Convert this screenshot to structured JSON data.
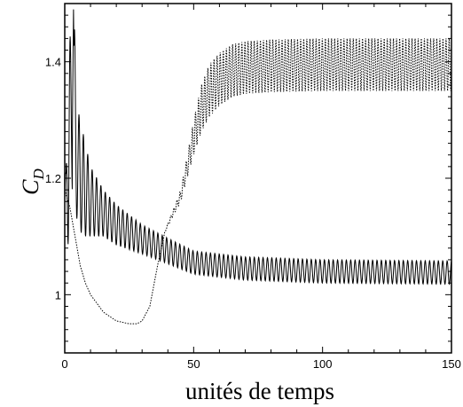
{
  "chart_data": {
    "type": "line",
    "title": "",
    "xlabel": "unités de temps",
    "ylabel": {
      "main": "C",
      "sub": "D"
    },
    "xlim": [
      0,
      150
    ],
    "ylim": [
      0.9,
      1.5
    ],
    "grid": false,
    "legend": "none",
    "x_ticks": [
      0,
      50,
      100,
      150
    ],
    "x_tick_labels": [
      "0",
      "50",
      "100",
      "150"
    ],
    "y_ticks": [
      1.0,
      1.2,
      1.4
    ],
    "y_tick_labels": [
      "1",
      "1.2",
      "1.4"
    ],
    "colors": {
      "series_line": "#000000",
      "axes": "#000000"
    },
    "series": [
      {
        "style": "solid",
        "description_points": {
          "t": [
            0.5,
            1.5,
            2.5,
            3.5,
            5,
            7,
            10,
            15,
            20,
            30,
            40,
            50,
            70,
            100,
            150
          ],
          "mean": [
            1.16,
            1.28,
            1.3,
            1.33,
            1.22,
            1.19,
            1.16,
            1.14,
            1.12,
            1.095,
            1.075,
            1.055,
            1.045,
            1.04,
            1.038
          ],
          "amplitude": [
            0.05,
            0.2,
            0.12,
            0.16,
            0.1,
            0.09,
            0.06,
            0.04,
            0.035,
            0.025,
            0.022,
            0.02,
            0.02,
            0.02,
            0.02
          ],
          "peak_max": 1.49,
          "period": 1.7
        }
      },
      {
        "style": "dotted",
        "description_points": {
          "t": [
            0,
            2,
            4,
            6,
            8,
            10,
            15,
            20,
            25,
            28,
            30,
            33,
            36,
            39,
            42,
            45,
            48,
            50,
            53,
            56,
            60,
            65,
            70,
            80,
            100,
            150
          ],
          "mean": [
            1.18,
            1.15,
            1.1,
            1.05,
            1.02,
            1.0,
            0.97,
            0.955,
            0.95,
            0.95,
            0.955,
            0.98,
            1.05,
            1.11,
            1.14,
            1.17,
            1.23,
            1.27,
            1.32,
            1.35,
            1.37,
            1.385,
            1.39,
            1.393,
            1.395,
            1.395
          ],
          "amplitude": [
            0,
            0,
            0,
            0,
            0,
            0,
            0,
            0,
            0,
            0,
            0,
            0,
            0,
            0.002,
            0.005,
            0.01,
            0.02,
            0.03,
            0.04,
            0.045,
            0.045,
            0.045,
            0.045,
            0.045,
            0.045,
            0.045
          ],
          "period": 1.2
        }
      }
    ]
  }
}
